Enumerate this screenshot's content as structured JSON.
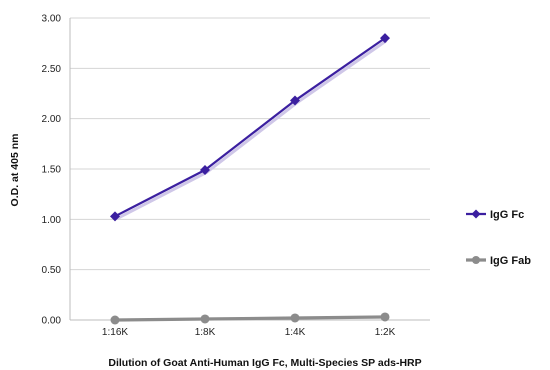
{
  "chart_data": {
    "type": "line",
    "title": "",
    "xlabel": "Dilution of Goat Anti-Human IgG Fc, Multi-Species SP ads-HRP",
    "ylabel": "O.D. at 405 nm",
    "categories": [
      "1:16K",
      "1:8K",
      "1:4K",
      "1:2K"
    ],
    "ylim": [
      0,
      3
    ],
    "yticks": [
      "0.00",
      "0.50",
      "1.00",
      "1.50",
      "2.00",
      "2.50",
      "3.00"
    ],
    "grid": true,
    "legend_position": "right",
    "series": [
      {
        "name": "IgG Fc",
        "values": [
          1.03,
          1.49,
          2.18,
          2.8
        ],
        "color": "#3b1fa0",
        "marker": "diamond"
      },
      {
        "name": "IgG Fab",
        "values": [
          0.0,
          0.01,
          0.02,
          0.03
        ],
        "color": "#8c8c8c",
        "marker": "circle"
      }
    ]
  }
}
